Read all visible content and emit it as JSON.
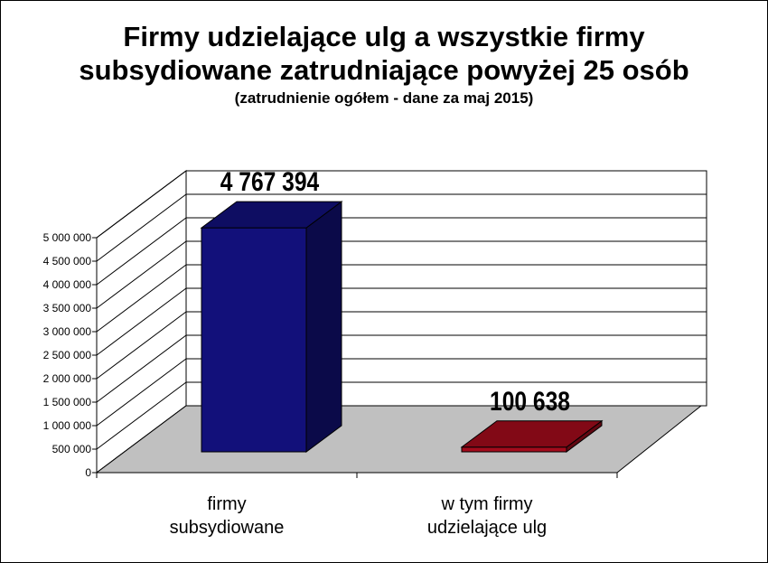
{
  "chart_data": {
    "type": "bar",
    "title_lines": [
      "Firmy udzielające ulg a wszystkie firmy",
      "subsydiowane zatrudniające powyżej 25 osób"
    ],
    "subtitle": "(zatrudnienie ogółem - dane za maj 2015)",
    "categories": [
      [
        "firmy",
        "subsydiowane"
      ],
      [
        "w tym firmy",
        "udzielające ulg"
      ]
    ],
    "values": [
      4767394,
      100638
    ],
    "value_labels": [
      "4 767 394",
      "100 638"
    ],
    "ylim": [
      0,
      5000000
    ],
    "ytick_step": 500000,
    "ytick_labels": [
      "0",
      "500 000",
      "1 000 000",
      "1 500 000",
      "2 000 000",
      "2 500 000",
      "3 000 000",
      "3 500 000",
      "4 000 000",
      "4 500 000",
      "5 000 000"
    ],
    "bar_colors": [
      "#12107a",
      "#a30b1c"
    ],
    "floor_color": "#c0c0c0",
    "grid": true,
    "legend": "none"
  }
}
